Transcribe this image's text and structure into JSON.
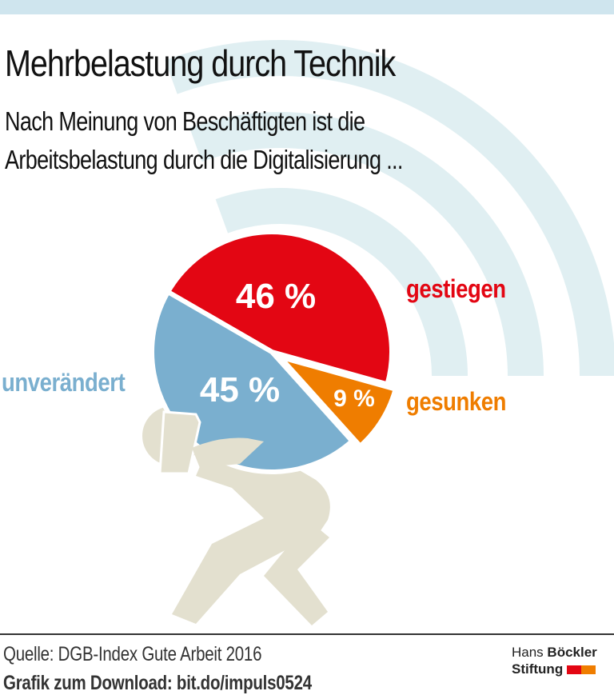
{
  "header": {
    "title": "Mehrbelastung durch Technik",
    "subtitle_line1": "Nach Meinung von Beschäftigten ist die",
    "subtitle_line2": "Arbeitsbelastung durch die Digitalisierung ..."
  },
  "chart_data": {
    "type": "pie",
    "title": "Mehrbelastung durch Technik",
    "subtitle": "Nach Meinung von Beschäftigten ist die Arbeitsbelastung durch die Digitalisierung ...",
    "slices": [
      {
        "key": "gestiegen",
        "label": "gestiegen",
        "value": 46,
        "value_label": "46 %",
        "color": "#e30613"
      },
      {
        "key": "gesunken",
        "label": "gesunken",
        "value": 9,
        "value_label": "9 %",
        "color": "#ef7d00"
      },
      {
        "key": "unveraendert",
        "label": "unverändert",
        "value": 45,
        "value_label": "45 %",
        "color": "#7aafcf"
      }
    ],
    "unit": "%"
  },
  "decor": {
    "arc_color": "#e0eff2",
    "figure_color": "#e3e0cf",
    "figure_icon": "person-carrying-load-icon",
    "signal_icon": "wifi-signal-icon"
  },
  "footer": {
    "source": "Quelle: DGB-Index Gute Arbeit 2016",
    "download": "Grafik zum Download: bit.do/impuls0524",
    "logo_line1_light": "Hans",
    "logo_line1_bold": "Böckler",
    "logo_line2": "Stiftung",
    "logo_colors": [
      "#e30613",
      "#ef7d00"
    ]
  }
}
